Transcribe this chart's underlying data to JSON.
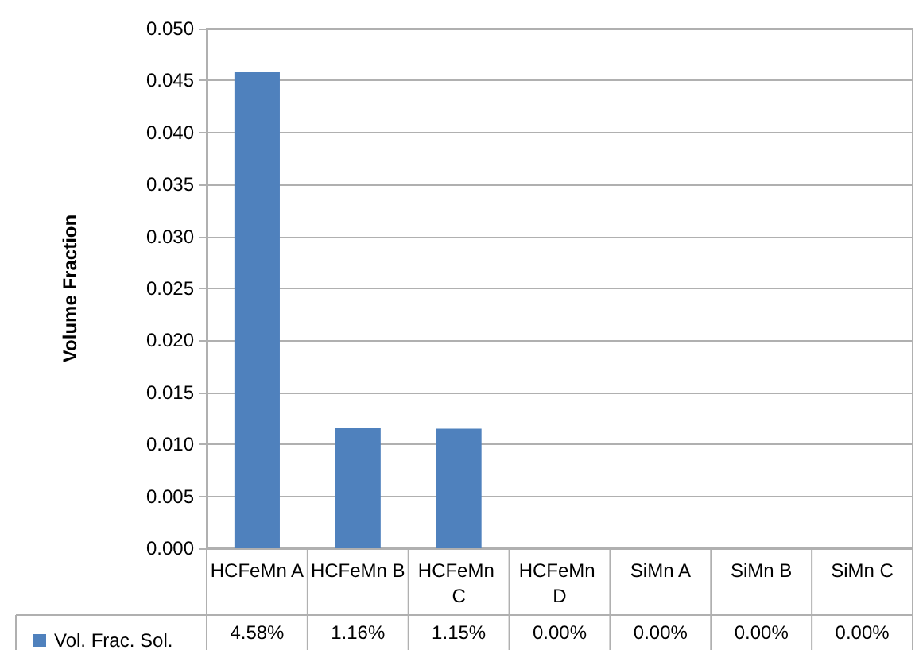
{
  "chart_data": {
    "type": "bar",
    "ylabel": "Volume Fraction",
    "categories": [
      "HCFeMn A",
      "HCFeMn B",
      "HCFeMn C",
      "HCFeMn D",
      "SiMn A",
      "SiMn B",
      "SiMn C"
    ],
    "series": [
      {
        "name": "Vol. Frac. Sol.",
        "color": "#4f81bd",
        "values": [
          0.0458,
          0.0116,
          0.0115,
          0,
          0,
          0,
          0
        ],
        "value_labels": [
          "4.58%",
          "1.16%",
          "1.15%",
          "0.00%",
          "0.00%",
          "0.00%",
          "0.00%"
        ]
      }
    ],
    "ylim": [
      0,
      0.05
    ],
    "yticks": [
      {
        "value": 0,
        "label": "0.000"
      },
      {
        "value": 0.005,
        "label": "0.005"
      },
      {
        "value": 0.01,
        "label": "0.010"
      },
      {
        "value": 0.015,
        "label": "0.015"
      },
      {
        "value": 0.02,
        "label": "0.020"
      },
      {
        "value": 0.025,
        "label": "0.025"
      },
      {
        "value": 0.03,
        "label": "0.030"
      },
      {
        "value": 0.035,
        "label": "0.035"
      },
      {
        "value": 0.04,
        "label": "0.040"
      },
      {
        "value": 0.045,
        "label": "0.045"
      },
      {
        "value": 0.05,
        "label": "0.050"
      }
    ],
    "grid": "y",
    "legend": "bottom left"
  }
}
